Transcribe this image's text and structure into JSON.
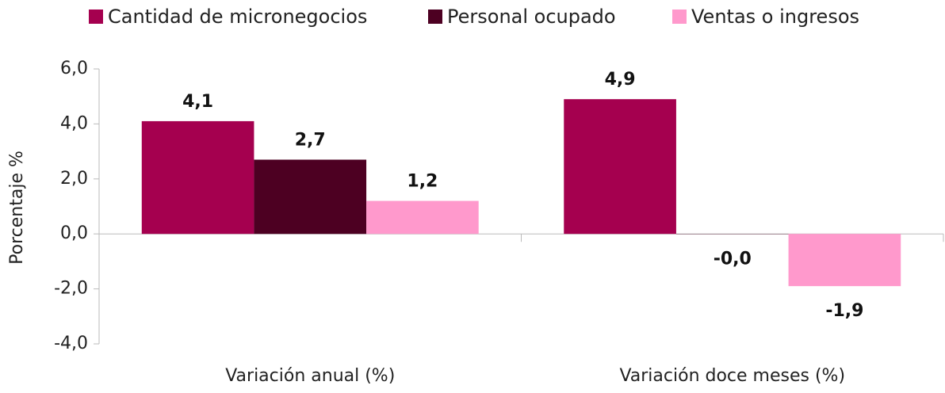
{
  "chart_data": {
    "type": "bar",
    "categories": [
      "Variación anual (%)",
      "Variación doce meses (%)"
    ],
    "series": [
      {
        "name": "Cantidad de micronegocios",
        "color": "#a5004f",
        "values": [
          4.1,
          4.9
        ],
        "value_labels": [
          "4,1",
          "4,9"
        ]
      },
      {
        "name": "Personal ocupado",
        "color": "#4d0022",
        "values": [
          2.7,
          -0.01
        ],
        "value_labels": [
          "2,7",
          "-0,0"
        ]
      },
      {
        "name": "Ventas o ingresos",
        "color": "#ff99cc",
        "values": [
          1.2,
          -1.9
        ],
        "value_labels": [
          "1,2",
          "-1,9"
        ]
      }
    ],
    "ylabel": "Porcentaje %",
    "ylim": [
      -4,
      6
    ],
    "yticks": [
      {
        "value": -4,
        "label": "-4,0"
      },
      {
        "value": -2,
        "label": "-2,0"
      },
      {
        "value": 0,
        "label": "0,0"
      },
      {
        "value": 2,
        "label": "2,0"
      },
      {
        "value": 4,
        "label": "4,0"
      },
      {
        "value": 6,
        "label": "6,0"
      }
    ],
    "grid": false,
    "legend": "top"
  }
}
